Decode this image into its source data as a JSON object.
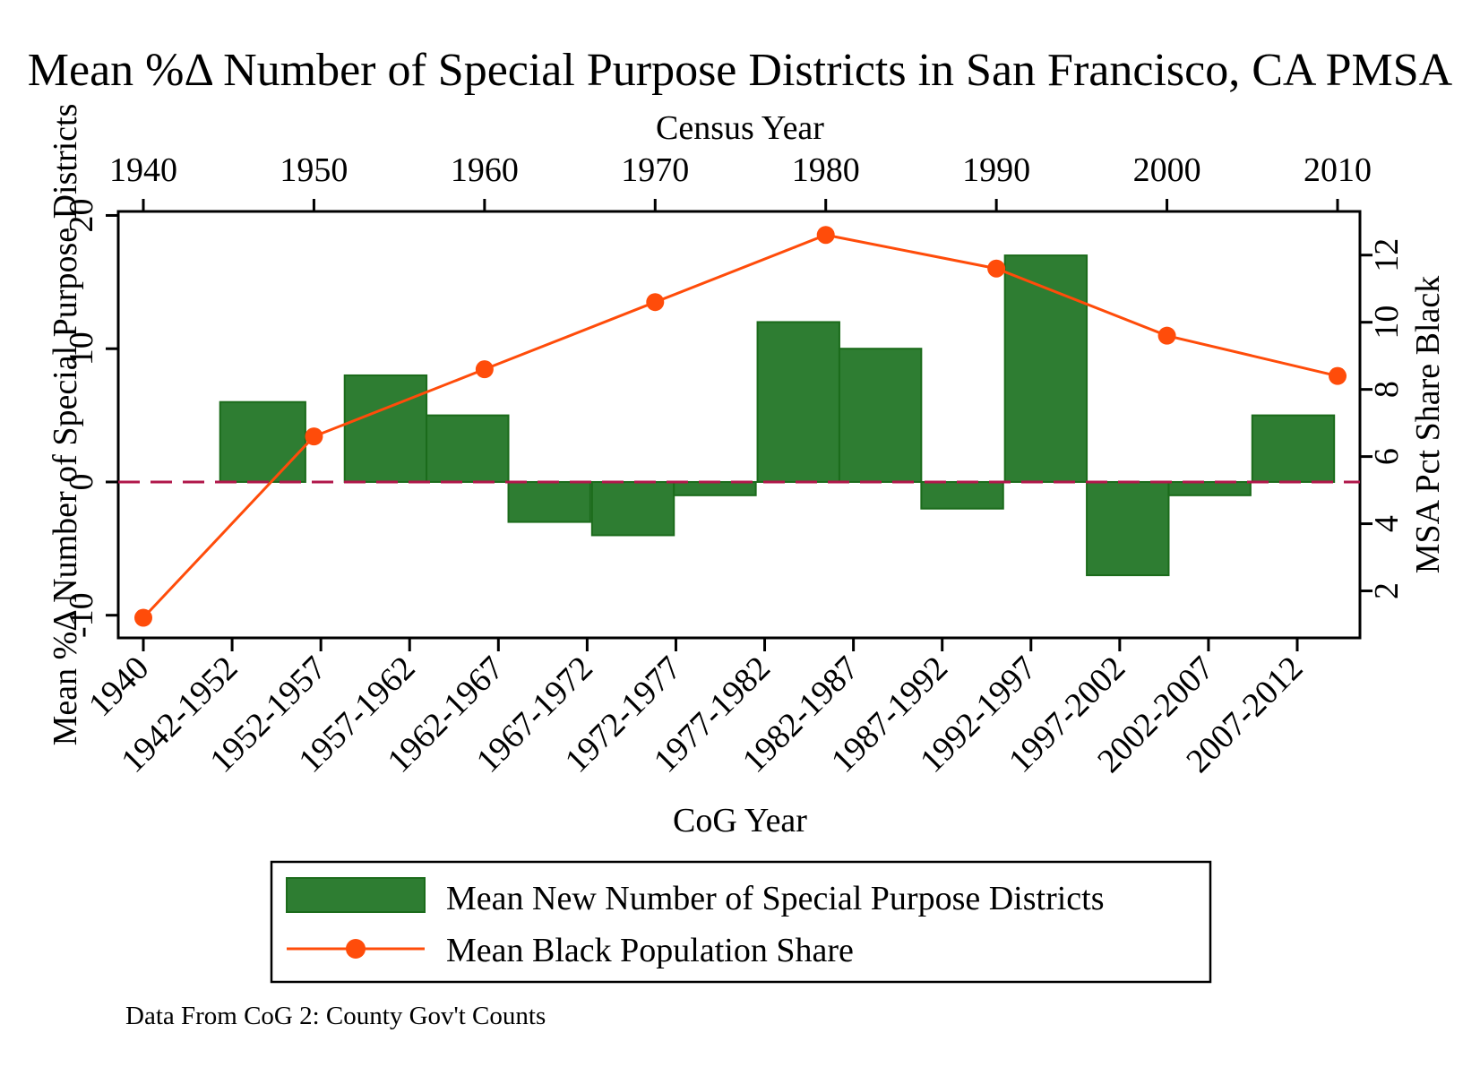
{
  "chart_data": {
    "type": "bar+line",
    "title": "Mean %Δ Number of Special Purpose Districts in San Francisco, CA PMSA",
    "x_top_label": "Census Year",
    "x_top_ticks": [
      1940,
      1950,
      1960,
      1970,
      1980,
      1990,
      2000,
      2010
    ],
    "x_bottom_label": "CoG Year",
    "categories": [
      "1940",
      "1942-1952",
      "1952-1957",
      "1957-1962",
      "1962-1967",
      "1967-1972",
      "1972-1977",
      "1977-1982",
      "1982-1987",
      "1987-1992",
      "1992-1997",
      "1997-2002",
      "2002-2007",
      "2007-2012"
    ],
    "y_left_label": "Mean %Δ Number of Special Purpose Districts",
    "y_left_ticks": [
      "-10",
      "0",
      "10",
      "20"
    ],
    "y_left_range": [
      -11.7,
      20.3
    ],
    "y_right_label": "MSA Pct Share Black",
    "y_right_ticks": [
      "2",
      "4",
      "6",
      "8",
      "10",
      "12"
    ],
    "y_right_range": [
      0.6,
      13.3
    ],
    "reference_line": {
      "y": 0,
      "style": "dashed",
      "color": "#b0174a"
    },
    "series": [
      {
        "name": "Mean New Number of Special Purpose Districts",
        "type": "bar",
        "axis": "left",
        "color": "#2e7d32",
        "edge_color": "#1b6b1b",
        "bars": [
          {
            "start": 1944.5,
            "end": 1949.5,
            "value": 6
          },
          {
            "start": 1951.8,
            "end": 1956.6,
            "value": 8
          },
          {
            "start": 1956.6,
            "end": 1961.4,
            "value": 5
          },
          {
            "start": 1961.4,
            "end": 1966.2,
            "value": -3
          },
          {
            "start": 1966.3,
            "end": 1971.1,
            "value": -4
          },
          {
            "start": 1971.1,
            "end": 1975.9,
            "value": -1
          },
          {
            "start": 1976.0,
            "end": 1980.8,
            "value": 12
          },
          {
            "start": 1980.8,
            "end": 1985.6,
            "value": 10
          },
          {
            "start": 1985.6,
            "end": 1990.4,
            "value": -2
          },
          {
            "start": 1990.5,
            "end": 1995.3,
            "value": 17
          },
          {
            "start": 1995.3,
            "end": 2000.1,
            "value": -7
          },
          {
            "start": 2000.1,
            "end": 2004.9,
            "value": -1
          },
          {
            "start": 2005.0,
            "end": 2009.8,
            "value": 5
          }
        ]
      },
      {
        "name": "Mean Black Population Share",
        "type": "line",
        "axis": "right",
        "color": "#ff4c0a",
        "points": [
          {
            "x": 1940,
            "y": 1.2
          },
          {
            "x": 1950,
            "y": 6.6
          },
          {
            "x": 1960,
            "y": 8.6
          },
          {
            "x": 1970,
            "y": 10.6
          },
          {
            "x": 1980,
            "y": 12.6
          },
          {
            "x": 1990,
            "y": 11.6
          },
          {
            "x": 2000,
            "y": 9.6
          },
          {
            "x": 2010,
            "y": 8.4
          }
        ]
      }
    ],
    "legend": {
      "position": "bottom",
      "entries": [
        "Mean New Number of Special Purpose Districts",
        "Mean Black Population Share"
      ]
    },
    "note": "Data From CoG 2: County Gov't Counts"
  }
}
